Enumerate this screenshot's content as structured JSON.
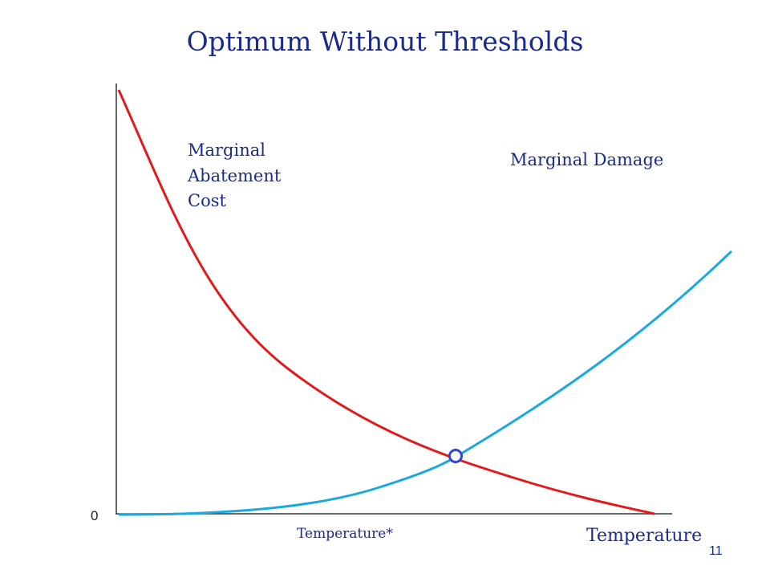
{
  "title": "Optimum Without Thresholds",
  "labels": {
    "mac_line1": "Marginal",
    "mac_line2": "Abatement",
    "mac_line3": "Cost",
    "marginal_damage": "Marginal Damage",
    "origin": "0",
    "optimum_temperature": "Temperature*",
    "x_axis": "Temperature",
    "page_number": "11"
  },
  "colors": {
    "title": "#1a2a8c",
    "abatement_curve": "#e01b1b",
    "damage_curve": "#1aa8e0",
    "optimum_marker": "#3344dd",
    "axis": "#333333"
  }
}
